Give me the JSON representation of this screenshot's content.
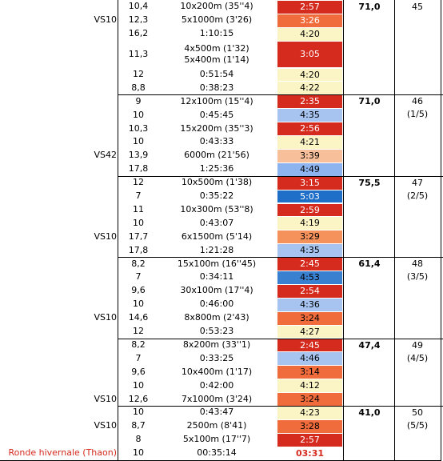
{
  "rows": [
    {
      "tag": "",
      "dist": "10,4",
      "work": "10x200m (35''4)",
      "pace": "2:57",
      "color": "#d52b1e",
      "text": "#ffffff",
      "h": 1
    },
    {
      "tag": "VS10",
      "dist": "12,3",
      "work": "5x1000m (3'26)",
      "pace": "3:26",
      "color": "#f06c3c",
      "text": "#ffffff",
      "h": 1
    },
    {
      "tag": "",
      "dist": "16,2",
      "work": "1:10:15",
      "pace": "4:20",
      "color": "#fbf5c6",
      "text": "#000000",
      "h": 1
    },
    {
      "tag": "",
      "dist": "11,3",
      "work": "4x500m (1'32)\n5x400m (1'14)",
      "pace": "3:05",
      "color": "#d52b1e",
      "text": "#ffffff",
      "h": 2
    },
    {
      "tag": "",
      "dist": "12",
      "work": "0:51:54",
      "pace": "4:20",
      "color": "#fbf5c6",
      "text": "#000000",
      "h": 1
    },
    {
      "tag": "",
      "dist": "8,8",
      "work": "0:38:23",
      "pace": "4:22",
      "color": "#fbf5c6",
      "text": "#000000",
      "h": 1
    },
    {
      "tag": "",
      "dist": "9",
      "work": "12x100m (15''4)",
      "pace": "2:35",
      "color": "#d52b1e",
      "text": "#ffffff",
      "h": 1
    },
    {
      "tag": "",
      "dist": "10",
      "work": "0:45:45",
      "pace": "4:35",
      "color": "#a7c4f0",
      "text": "#000000",
      "h": 1
    },
    {
      "tag": "",
      "dist": "10,3",
      "work": "15x200m (35''3)",
      "pace": "2:56",
      "color": "#d52b1e",
      "text": "#ffffff",
      "h": 1
    },
    {
      "tag": "",
      "dist": "10",
      "work": "0:43:33",
      "pace": "4:21",
      "color": "#fbf5c6",
      "text": "#000000",
      "h": 1
    },
    {
      "tag": "VS42",
      "dist": "13,9",
      "work": "6000m (21'56)",
      "pace": "3:39",
      "color": "#f8c09a",
      "text": "#000000",
      "h": 1
    },
    {
      "tag": "",
      "dist": "17,8",
      "work": "1:25:36",
      "pace": "4:49",
      "color": "#8db4ee",
      "text": "#000000",
      "h": 1
    },
    {
      "tag": "",
      "dist": "12",
      "work": "10x500m (1'38)",
      "pace": "3:15",
      "color": "#d52b1e",
      "text": "#ffffff",
      "h": 1
    },
    {
      "tag": "",
      "dist": "7",
      "work": "0:35:22",
      "pace": "5:03",
      "color": "#1f6fc8",
      "text": "#ffffff",
      "h": 1
    },
    {
      "tag": "",
      "dist": "11",
      "work": "10x300m (53''8)",
      "pace": "2:59",
      "color": "#d52b1e",
      "text": "#ffffff",
      "h": 1
    },
    {
      "tag": "",
      "dist": "10",
      "work": "0:43:07",
      "pace": "4:19",
      "color": "#fbf5c6",
      "text": "#000000",
      "h": 1
    },
    {
      "tag": "VS10",
      "dist": "17,7",
      "work": "6x1500m (5'14)",
      "pace": "3:29",
      "color": "#f5925c",
      "text": "#000000",
      "h": 1
    },
    {
      "tag": "",
      "dist": "17,8",
      "work": "1:21:28",
      "pace": "4:35",
      "color": "#a7c4f0",
      "text": "#000000",
      "h": 1
    },
    {
      "tag": "",
      "dist": "8,2",
      "work": "15x100m (16''45)",
      "pace": "2:45",
      "color": "#d52b1e",
      "text": "#ffffff",
      "h": 1
    },
    {
      "tag": "",
      "dist": "7",
      "work": "0:34:11",
      "pace": "4:53",
      "color": "#3a80d0",
      "text": "#000000",
      "h": 1
    },
    {
      "tag": "",
      "dist": "9,6",
      "work": "30x100m (17''4)",
      "pace": "2:54",
      "color": "#d52b1e",
      "text": "#ffffff",
      "h": 1
    },
    {
      "tag": "",
      "dist": "10",
      "work": "0:46:00",
      "pace": "4:36",
      "color": "#a7c4f0",
      "text": "#000000",
      "h": 1
    },
    {
      "tag": "VS10",
      "dist": "14,6",
      "work": "8x800m (2'43)",
      "pace": "3:24",
      "color": "#f06c3c",
      "text": "#000000",
      "h": 1
    },
    {
      "tag": "",
      "dist": "12",
      "work": "0:53:23",
      "pace": "4:27",
      "color": "#fbf5c6",
      "text": "#000000",
      "h": 1
    },
    {
      "tag": "",
      "dist": "8,2",
      "work": "8x200m (33''1)",
      "pace": "2:45",
      "color": "#d52b1e",
      "text": "#ffffff",
      "h": 1
    },
    {
      "tag": "",
      "dist": "7",
      "work": "0:33:25",
      "pace": "4:46",
      "color": "#a7c4f0",
      "text": "#000000",
      "h": 1
    },
    {
      "tag": "",
      "dist": "9,6",
      "work": "10x400m (1'17)",
      "pace": "3:14",
      "color": "#f06c3c",
      "text": "#000000",
      "h": 1
    },
    {
      "tag": "",
      "dist": "10",
      "work": "0:42:00",
      "pace": "4:12",
      "color": "#fbf5c6",
      "text": "#000000",
      "h": 1
    },
    {
      "tag": "VS10",
      "dist": "12,6",
      "work": "7x1000m (3'24)",
      "pace": "3:24",
      "color": "#f06c3c",
      "text": "#000000",
      "h": 1
    },
    {
      "tag": "",
      "dist": "10",
      "work": "0:43:47",
      "pace": "4:23",
      "color": "#fbf5c6",
      "text": "#000000",
      "h": 1
    },
    {
      "tag": "VS10",
      "dist": "8,7",
      "work": "2500m (8'41)",
      "pace": "3:28",
      "color": "#f06c3c",
      "text": "#000000",
      "h": 1
    },
    {
      "tag": "",
      "dist": "8",
      "work": "5x100m (17''7)",
      "pace": "2:57",
      "color": "#d52b1e",
      "text": "#ffffff",
      "h": 1
    },
    {
      "tag": "Ronde hivernale (Thaon)",
      "dist": "10",
      "work": "00:35:14",
      "pace": "03:31",
      "color": "#ffffff",
      "text": "#d52b1e",
      "h": 1,
      "race": true
    }
  ],
  "weeks": [
    {
      "total": "71,0",
      "num": "45",
      "frac": ""
    },
    {
      "total": "71,0",
      "num": "46",
      "frac": "(1/5)"
    },
    {
      "total": "75,5",
      "num": "47",
      "frac": "(2/5)"
    },
    {
      "total": "61,4",
      "num": "48",
      "frac": "(3/5)"
    },
    {
      "total": "47,4",
      "num": "49",
      "frac": "(4/5)"
    },
    {
      "total": "41,0",
      "num": "50",
      "frac": "(5/5)"
    }
  ]
}
